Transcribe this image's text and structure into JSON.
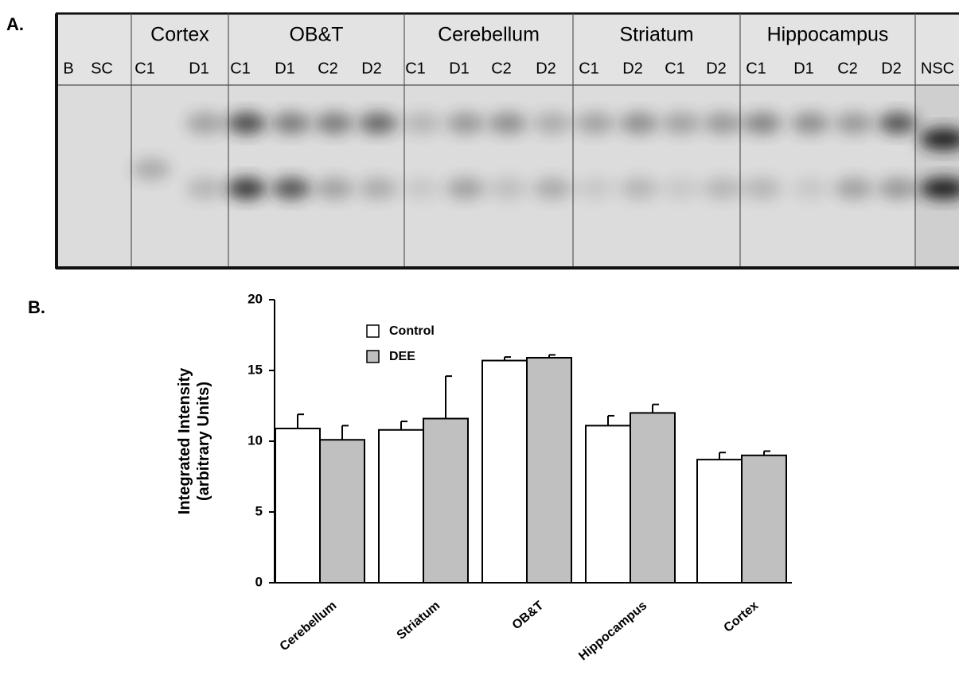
{
  "panel_a": {
    "label": "A.",
    "groups": [
      "Cortex",
      "OB&T",
      "Cerebellum",
      "Striatum",
      "Hippocampus"
    ],
    "lanes": [
      "B",
      "SC",
      "C1",
      "D1",
      "C1",
      "D1",
      "C2",
      "D2",
      "C1",
      "D1",
      "C2",
      "D2",
      "C1",
      "D2",
      "C1",
      "D2",
      "C1",
      "D1",
      "C2",
      "D2",
      "NSC"
    ]
  },
  "chart_data": {
    "type": "bar",
    "panel_label": "B.",
    "ylabel": [
      "Integrated Intensity",
      "(arbitrary Units)"
    ],
    "categories": [
      "Cerebellum",
      "Striatum",
      "OB&T",
      "Hippocampus",
      "Cortex"
    ],
    "series": [
      {
        "name": "Control",
        "color": "#ffffff",
        "values": [
          10.9,
          10.8,
          15.7,
          11.1,
          8.7
        ],
        "errors": [
          1.0,
          0.6,
          0.25,
          0.7,
          0.5
        ]
      },
      {
        "name": "DEE",
        "color": "#c0c0c0",
        "values": [
          10.1,
          11.6,
          15.9,
          12.0,
          9.0
        ],
        "errors": [
          1.0,
          3.0,
          0.2,
          0.6,
          0.3
        ]
      }
    ],
    "ylim": [
      0,
      20
    ],
    "yticks": [
      0,
      5,
      10,
      15,
      20
    ],
    "grid": false
  }
}
